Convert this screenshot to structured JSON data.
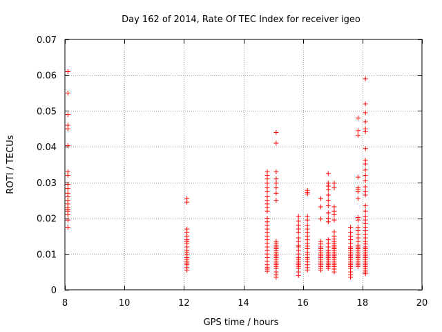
{
  "chart_data": {
    "type": "scatter",
    "title": "Day 162 of 2014, Rate Of TEC Index for receiver igeo",
    "xlabel": "GPS time / hours",
    "ylabel": "ROTI / TECUs",
    "xlim": [
      8,
      20
    ],
    "ylim": [
      0,
      0.07
    ],
    "xticks": [
      8,
      10,
      12,
      14,
      16,
      18,
      20
    ],
    "yticks": [
      0,
      0.01,
      0.02,
      0.03,
      0.04,
      0.05,
      0.06,
      0.07
    ],
    "xtick_labels": [
      "8",
      "10",
      "12",
      "14",
      "16",
      "18",
      "20"
    ],
    "ytick_labels": [
      "0",
      "0.01",
      "0.02",
      "0.03",
      "0.04",
      "0.05",
      "0.06",
      "0.07"
    ],
    "grid": true,
    "marker": "+",
    "marker_color": "#ff0000",
    "series": [
      {
        "name": "ROTI",
        "points": [
          [
            8.1,
            0.061
          ],
          [
            8.1,
            0.055
          ],
          [
            8.1,
            0.049
          ],
          [
            8.1,
            0.046
          ],
          [
            8.1,
            0.045
          ],
          [
            8.1,
            0.0403
          ],
          [
            8.1,
            0.033
          ],
          [
            8.1,
            0.032
          ],
          [
            8.1,
            0.0295
          ],
          [
            8.1,
            0.0283
          ],
          [
            8.1,
            0.027
          ],
          [
            8.1,
            0.026
          ],
          [
            8.1,
            0.025
          ],
          [
            8.1,
            0.024
          ],
          [
            8.1,
            0.023
          ],
          [
            8.1,
            0.0225
          ],
          [
            8.1,
            0.022
          ],
          [
            8.1,
            0.021
          ],
          [
            8.1,
            0.0195
          ],
          [
            8.1,
            0.0175
          ],
          [
            12.1,
            0.0255
          ],
          [
            12.1,
            0.0245
          ],
          [
            12.1,
            0.017
          ],
          [
            12.1,
            0.016
          ],
          [
            12.1,
            0.015
          ],
          [
            12.1,
            0.014
          ],
          [
            12.1,
            0.0135
          ],
          [
            12.1,
            0.013
          ],
          [
            12.1,
            0.012
          ],
          [
            12.1,
            0.011
          ],
          [
            12.1,
            0.0105
          ],
          [
            12.1,
            0.0098
          ],
          [
            12.1,
            0.009
          ],
          [
            12.1,
            0.0085
          ],
          [
            12.1,
            0.008
          ],
          [
            12.1,
            0.0075
          ],
          [
            12.1,
            0.007
          ],
          [
            12.1,
            0.0062
          ],
          [
            12.1,
            0.0055
          ],
          [
            14.8,
            0.033
          ],
          [
            14.8,
            0.032
          ],
          [
            14.8,
            0.031
          ],
          [
            14.8,
            0.0298
          ],
          [
            14.8,
            0.0285
          ],
          [
            14.8,
            0.0275
          ],
          [
            14.8,
            0.026
          ],
          [
            14.8,
            0.025
          ],
          [
            14.8,
            0.024
          ],
          [
            14.8,
            0.023
          ],
          [
            14.8,
            0.022
          ],
          [
            14.8,
            0.02
          ],
          [
            14.8,
            0.019
          ],
          [
            14.8,
            0.018
          ],
          [
            14.8,
            0.017
          ],
          [
            14.8,
            0.016
          ],
          [
            14.8,
            0.015
          ],
          [
            14.8,
            0.014
          ],
          [
            14.8,
            0.013
          ],
          [
            14.8,
            0.012
          ],
          [
            14.8,
            0.011
          ],
          [
            14.8,
            0.01
          ],
          [
            14.8,
            0.009
          ],
          [
            14.8,
            0.008
          ],
          [
            14.8,
            0.007
          ],
          [
            14.8,
            0.0063
          ],
          [
            14.8,
            0.0058
          ],
          [
            14.8,
            0.0052
          ],
          [
            15.1,
            0.044
          ],
          [
            15.1,
            0.041
          ],
          [
            15.1,
            0.033
          ],
          [
            15.1,
            0.031
          ],
          [
            15.1,
            0.0298
          ],
          [
            15.1,
            0.0285
          ],
          [
            15.1,
            0.027
          ],
          [
            15.1,
            0.025
          ],
          [
            15.1,
            0.0135
          ],
          [
            15.1,
            0.013
          ],
          [
            15.1,
            0.0125
          ],
          [
            15.1,
            0.012
          ],
          [
            15.1,
            0.0115
          ],
          [
            15.1,
            0.011
          ],
          [
            15.1,
            0.0105
          ],
          [
            15.1,
            0.01
          ],
          [
            15.1,
            0.0095
          ],
          [
            15.1,
            0.009
          ],
          [
            15.1,
            0.0085
          ],
          [
            15.1,
            0.008
          ],
          [
            15.1,
            0.0075
          ],
          [
            15.1,
            0.007
          ],
          [
            15.1,
            0.0065
          ],
          [
            15.1,
            0.006
          ],
          [
            15.1,
            0.005
          ],
          [
            15.1,
            0.0042
          ],
          [
            15.1,
            0.0035
          ],
          [
            15.85,
            0.0205
          ],
          [
            15.85,
            0.0192
          ],
          [
            15.85,
            0.018
          ],
          [
            15.85,
            0.017
          ],
          [
            15.85,
            0.016
          ],
          [
            15.85,
            0.0145
          ],
          [
            15.85,
            0.0135
          ],
          [
            15.85,
            0.0125
          ],
          [
            15.85,
            0.012
          ],
          [
            15.85,
            0.011
          ],
          [
            15.85,
            0.01
          ],
          [
            15.85,
            0.009
          ],
          [
            15.85,
            0.0085
          ],
          [
            15.85,
            0.008
          ],
          [
            15.85,
            0.0075
          ],
          [
            15.85,
            0.007
          ],
          [
            15.85,
            0.0065
          ],
          [
            15.85,
            0.006
          ],
          [
            15.85,
            0.005
          ],
          [
            15.85,
            0.004
          ],
          [
            16.15,
            0.0278
          ],
          [
            16.15,
            0.0272
          ],
          [
            16.15,
            0.0268
          ],
          [
            16.15,
            0.0205
          ],
          [
            16.15,
            0.0195
          ],
          [
            16.15,
            0.018
          ],
          [
            16.15,
            0.017
          ],
          [
            16.15,
            0.016
          ],
          [
            16.15,
            0.015
          ],
          [
            16.15,
            0.014
          ],
          [
            16.15,
            0.013
          ],
          [
            16.15,
            0.0122
          ],
          [
            16.15,
            0.0115
          ],
          [
            16.15,
            0.0105
          ],
          [
            16.15,
            0.0098
          ],
          [
            16.15,
            0.009
          ],
          [
            16.15,
            0.0085
          ],
          [
            16.15,
            0.0078
          ],
          [
            16.15,
            0.007
          ],
          [
            16.15,
            0.0062
          ],
          [
            16.15,
            0.0055
          ],
          [
            16.6,
            0.0255
          ],
          [
            16.6,
            0.0232
          ],
          [
            16.6,
            0.0198
          ],
          [
            16.6,
            0.0135
          ],
          [
            16.6,
            0.0128
          ],
          [
            16.6,
            0.012
          ],
          [
            16.6,
            0.0115
          ],
          [
            16.6,
            0.011
          ],
          [
            16.6,
            0.0105
          ],
          [
            16.6,
            0.01
          ],
          [
            16.6,
            0.0095
          ],
          [
            16.6,
            0.009
          ],
          [
            16.6,
            0.0085
          ],
          [
            16.6,
            0.008
          ],
          [
            16.6,
            0.0075
          ],
          [
            16.6,
            0.007
          ],
          [
            16.6,
            0.0065
          ],
          [
            16.6,
            0.006
          ],
          [
            16.6,
            0.0055
          ],
          [
            16.85,
            0.0325
          ],
          [
            16.85,
            0.0298
          ],
          [
            16.85,
            0.029
          ],
          [
            16.85,
            0.028
          ],
          [
            16.85,
            0.0265
          ],
          [
            16.85,
            0.025
          ],
          [
            16.85,
            0.0235
          ],
          [
            16.85,
            0.0215
          ],
          [
            16.85,
            0.02
          ],
          [
            16.85,
            0.019
          ],
          [
            16.85,
            0.014
          ],
          [
            16.85,
            0.013
          ],
          [
            16.85,
            0.012
          ],
          [
            16.85,
            0.011
          ],
          [
            16.85,
            0.0105
          ],
          [
            16.85,
            0.01
          ],
          [
            16.85,
            0.0095
          ],
          [
            16.85,
            0.009
          ],
          [
            16.85,
            0.0085
          ],
          [
            16.85,
            0.008
          ],
          [
            16.85,
            0.0075
          ],
          [
            16.85,
            0.007
          ],
          [
            16.85,
            0.0065
          ],
          [
            16.85,
            0.006
          ],
          [
            17.05,
            0.0298
          ],
          [
            17.05,
            0.0285
          ],
          [
            17.05,
            0.0232
          ],
          [
            17.05,
            0.022
          ],
          [
            17.05,
            0.021
          ],
          [
            17.05,
            0.0195
          ],
          [
            17.05,
            0.0162
          ],
          [
            17.05,
            0.015
          ],
          [
            17.05,
            0.0142
          ],
          [
            17.05,
            0.0135
          ],
          [
            17.05,
            0.013
          ],
          [
            17.05,
            0.0125
          ],
          [
            17.05,
            0.012
          ],
          [
            17.05,
            0.0115
          ],
          [
            17.05,
            0.011
          ],
          [
            17.05,
            0.0105
          ],
          [
            17.05,
            0.01
          ],
          [
            17.05,
            0.0095
          ],
          [
            17.05,
            0.009
          ],
          [
            17.05,
            0.0085
          ],
          [
            17.05,
            0.008
          ],
          [
            17.05,
            0.0075
          ],
          [
            17.05,
            0.007
          ],
          [
            17.05,
            0.0065
          ],
          [
            17.05,
            0.0058
          ],
          [
            17.05,
            0.005
          ],
          [
            17.6,
            0.0175
          ],
          [
            17.6,
            0.016
          ],
          [
            17.6,
            0.015
          ],
          [
            17.6,
            0.014
          ],
          [
            17.6,
            0.013
          ],
          [
            17.6,
            0.012
          ],
          [
            17.6,
            0.0115
          ],
          [
            17.6,
            0.011
          ],
          [
            17.6,
            0.0105
          ],
          [
            17.6,
            0.01
          ],
          [
            17.6,
            0.0095
          ],
          [
            17.6,
            0.009
          ],
          [
            17.6,
            0.0085
          ],
          [
            17.6,
            0.008
          ],
          [
            17.6,
            0.0075
          ],
          [
            17.6,
            0.007
          ],
          [
            17.6,
            0.0065
          ],
          [
            17.6,
            0.006
          ],
          [
            17.6,
            0.005
          ],
          [
            17.6,
            0.0042
          ],
          [
            17.6,
            0.0035
          ],
          [
            17.85,
            0.048
          ],
          [
            17.85,
            0.0445
          ],
          [
            17.85,
            0.0432
          ],
          [
            17.85,
            0.0315
          ],
          [
            17.85,
            0.0285
          ],
          [
            17.85,
            0.028
          ],
          [
            17.85,
            0.0275
          ],
          [
            17.85,
            0.0255
          ],
          [
            17.85,
            0.0202
          ],
          [
            17.85,
            0.0195
          ],
          [
            17.85,
            0.0175
          ],
          [
            17.85,
            0.0165
          ],
          [
            17.85,
            0.0155
          ],
          [
            17.85,
            0.0145
          ],
          [
            17.85,
            0.0135
          ],
          [
            17.85,
            0.0125
          ],
          [
            17.85,
            0.012
          ],
          [
            17.85,
            0.0115
          ],
          [
            17.85,
            0.011
          ],
          [
            17.85,
            0.0105
          ],
          [
            17.85,
            0.01
          ],
          [
            17.85,
            0.0095
          ],
          [
            17.85,
            0.009
          ],
          [
            17.85,
            0.0085
          ],
          [
            17.85,
            0.008
          ],
          [
            17.85,
            0.0075
          ],
          [
            17.85,
            0.007
          ],
          [
            17.85,
            0.0065
          ],
          [
            18.1,
            0.059
          ],
          [
            18.1,
            0.052
          ],
          [
            18.1,
            0.0495
          ],
          [
            18.1,
            0.047
          ],
          [
            18.1,
            0.045
          ],
          [
            18.1,
            0.0442
          ],
          [
            18.1,
            0.0395
          ],
          [
            18.1,
            0.0362
          ],
          [
            18.1,
            0.0352
          ],
          [
            18.1,
            0.0335
          ],
          [
            18.1,
            0.032
          ],
          [
            18.1,
            0.0305
          ],
          [
            18.1,
            0.0288
          ],
          [
            18.1,
            0.0275
          ],
          [
            18.1,
            0.0265
          ],
          [
            18.1,
            0.0235
          ],
          [
            18.1,
            0.022
          ],
          [
            18.1,
            0.0205
          ],
          [
            18.1,
            0.0195
          ],
          [
            18.1,
            0.0185
          ],
          [
            18.1,
            0.0175
          ],
          [
            18.1,
            0.0165
          ],
          [
            18.1,
            0.0155
          ],
          [
            18.1,
            0.0145
          ],
          [
            18.1,
            0.0135
          ],
          [
            18.1,
            0.0128
          ],
          [
            18.1,
            0.012
          ],
          [
            18.1,
            0.0115
          ],
          [
            18.1,
            0.011
          ],
          [
            18.1,
            0.0105
          ],
          [
            18.1,
            0.01
          ],
          [
            18.1,
            0.0095
          ],
          [
            18.1,
            0.009
          ],
          [
            18.1,
            0.0085
          ],
          [
            18.1,
            0.008
          ],
          [
            18.1,
            0.0075
          ],
          [
            18.1,
            0.007
          ],
          [
            18.1,
            0.0065
          ],
          [
            18.1,
            0.006
          ],
          [
            18.1,
            0.0055
          ],
          [
            18.1,
            0.005
          ],
          [
            18.1,
            0.0045
          ]
        ]
      }
    ]
  }
}
